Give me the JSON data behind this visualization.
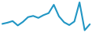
{
  "values": [
    15.6,
    15.9,
    16.3,
    15.2,
    16.1,
    17.3,
    17.6,
    17.1,
    17.8,
    18.3,
    20.4,
    17.5,
    16.0,
    15.3,
    16.2,
    21.0,
    14.0,
    15.5
  ],
  "line_color": "#2196C4",
  "background_color": "#ffffff",
  "linewidth": 1.5
}
